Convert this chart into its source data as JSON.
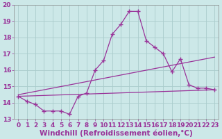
{
  "xlabel": "Windchill (Refroidissement éolien,°C)",
  "background_color": "#cce8e8",
  "line_color": "#993399",
  "xlim": [
    -0.5,
    23.5
  ],
  "ylim": [
    13,
    20
  ],
  "xticks": [
    0,
    1,
    2,
    3,
    4,
    5,
    6,
    7,
    8,
    9,
    10,
    11,
    12,
    13,
    14,
    15,
    16,
    17,
    18,
    19,
    20,
    21,
    22,
    23
  ],
  "yticks": [
    13,
    14,
    15,
    16,
    17,
    18,
    19,
    20
  ],
  "grid_color": "#aacccc",
  "main_series": {
    "x": [
      0,
      1,
      2,
      3,
      4,
      5,
      6,
      7,
      8,
      9,
      10,
      11,
      12,
      13,
      14,
      15,
      16,
      17,
      18,
      19,
      20,
      21,
      22,
      23
    ],
    "y": [
      14.4,
      14.1,
      13.9,
      13.5,
      13.5,
      13.5,
      13.3,
      14.4,
      14.6,
      16.0,
      16.6,
      18.2,
      18.8,
      19.6,
      19.6,
      17.8,
      17.4,
      17.0,
      15.9,
      16.7,
      15.1,
      14.9,
      14.9,
      14.8
    ]
  },
  "line1": {
    "x": [
      0,
      23
    ],
    "y": [
      14.4,
      14.8
    ]
  },
  "line2": {
    "x": [
      0,
      23
    ],
    "y": [
      14.5,
      16.8
    ]
  },
  "tick_fontsize": 6.5,
  "xlabel_fontsize": 7.5
}
